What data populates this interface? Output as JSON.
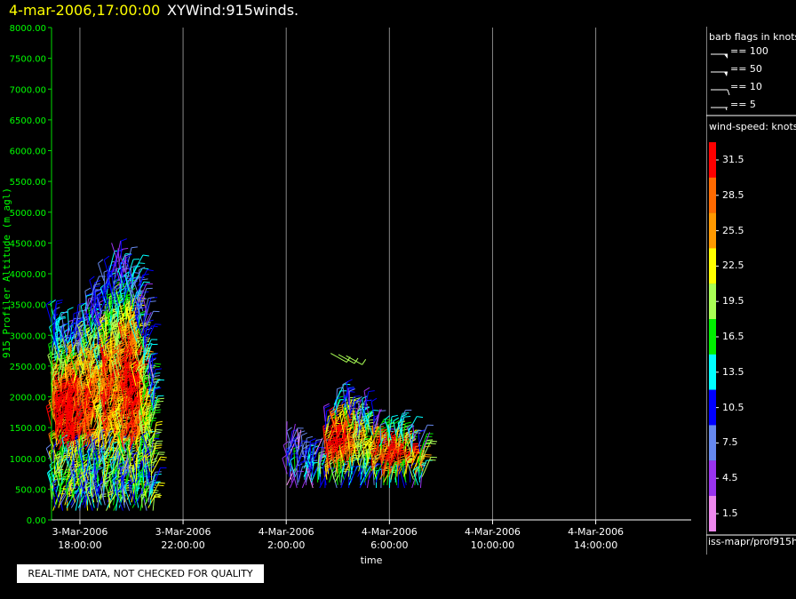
{
  "title": {
    "date": "4-mar-2006,17:00:00",
    "main": "XYWind:915winds."
  },
  "qc_notice": "REAL-TIME DATA, NOT CHECKED FOR QUALITY",
  "source_label": "iss-mapr/prof915h",
  "legend": {
    "barb_title": "barb flags in knots",
    "barbs": [
      {
        "label": "== 100",
        "type": "pennant"
      },
      {
        "label": "== 50",
        "type": "pennant-small"
      },
      {
        "label": "== 10",
        "type": "full"
      },
      {
        "label": "== 5",
        "type": "half"
      }
    ],
    "speed_title": "wind-speed: knots",
    "speed_bins": [
      {
        "label": "31.5",
        "color": "#ff0000"
      },
      {
        "label": "28.5",
        "color": "#ff6a00"
      },
      {
        "label": "25.5",
        "color": "#ff9900"
      },
      {
        "label": "22.5",
        "color": "#ffff00"
      },
      {
        "label": "19.5",
        "color": "#aaff55"
      },
      {
        "label": "16.5",
        "color": "#00ee00"
      },
      {
        "label": "13.5",
        "color": "#00ffff"
      },
      {
        "label": "10.5",
        "color": "#0000ff"
      },
      {
        "label": "7.5",
        "color": "#6688ee"
      },
      {
        "label": "4.5",
        "color": "#9933ee"
      },
      {
        "label": "1.5",
        "color": "#ee88ee"
      }
    ]
  },
  "chart_data": {
    "type": "scatter",
    "subtype": "wind-barbs",
    "xlabel": "time",
    "ylabel": "915 Profiler Altitude (m agl)",
    "x_ticks": [
      {
        "line1": "3-Mar-2006",
        "line2": "18:00:00",
        "hour": 0
      },
      {
        "line1": "3-Mar-2006",
        "line2": "22:00:00",
        "hour": 4
      },
      {
        "line1": "4-Mar-2006",
        "line2": "2:00:00",
        "hour": 8
      },
      {
        "line1": "4-Mar-2006",
        "line2": "6:00:00",
        "hour": 12
      },
      {
        "line1": "4-Mar-2006",
        "line2": "10:00:00",
        "hour": 16
      },
      {
        "line1": "4-Mar-2006",
        "line2": "14:00:00",
        "hour": 20
      }
    ],
    "x_reference": "3-Mar-2006 18:00:00",
    "x_range_hours": [
      -1.1,
      23.7
    ],
    "ylim": [
      0,
      8000
    ],
    "y_ticks": [
      "0.00",
      "500.00",
      "1000.00",
      "1500.00",
      "2000.00",
      "2500.00",
      "3000.00",
      "3500.00",
      "4000.00",
      "4500.00",
      "5000.00",
      "5500.00",
      "6000.00",
      "6500.00",
      "7000.00",
      "7500.00",
      "8000.00"
    ],
    "grid": "vertical",
    "series": [
      {
        "profiles": [
          {
            "hour": -1.0,
            "top": 3300,
            "mid_speed": 24
          },
          {
            "hour": -0.75,
            "top": 3000,
            "mid_speed": 30
          },
          {
            "hour": -0.5,
            "top": 3100,
            "mid_speed": 31
          },
          {
            "hour": -0.25,
            "top": 3200,
            "mid_speed": 29
          },
          {
            "hour": 0.0,
            "top": 3000,
            "mid_speed": 27
          },
          {
            "hour": 0.25,
            "top": 3500,
            "mid_speed": 25
          },
          {
            "hour": 0.5,
            "top": 3700,
            "mid_speed": 22
          },
          {
            "hour": 0.75,
            "top": 3400,
            "mid_speed": 20
          },
          {
            "hour": 1.0,
            "top": 3900,
            "mid_speed": 26
          },
          {
            "hour": 1.25,
            "top": 4100,
            "mid_speed": 23
          },
          {
            "hour": 1.5,
            "top": 4300,
            "mid_speed": 21
          },
          {
            "hour": 1.75,
            "top": 4100,
            "mid_speed": 28
          },
          {
            "hour": 2.0,
            "top": 4000,
            "mid_speed": 30
          },
          {
            "hour": 2.25,
            "top": 3800,
            "mid_speed": 24
          },
          {
            "hour": 2.5,
            "top": 3400,
            "mid_speed": 18
          },
          {
            "hour": 2.75,
            "top": 2400,
            "mid_speed": 17
          },
          {
            "hour": 8.1,
            "top": 1300,
            "mid_speed": 8
          },
          {
            "hour": 8.4,
            "top": 1200,
            "mid_speed": 9
          },
          {
            "hour": 8.7,
            "top": 1100,
            "mid_speed": 10
          },
          {
            "hour": 9.0,
            "top": 1100,
            "mid_speed": 11
          },
          {
            "hour": 9.3,
            "top": 1000,
            "mid_speed": 13
          },
          {
            "hour": 9.6,
            "top": 1600,
            "mid_speed": 28
          },
          {
            "hour": 9.9,
            "top": 1900,
            "mid_speed": 30
          },
          {
            "hour": 10.2,
            "top": 2000,
            "mid_speed": 26
          },
          {
            "hour": 10.5,
            "top": 1900,
            "mid_speed": 22
          },
          {
            "hour": 10.8,
            "top": 1700,
            "mid_speed": 18
          },
          {
            "hour": 11.1,
            "top": 1800,
            "mid_speed": 20
          },
          {
            "hour": 11.4,
            "top": 1600,
            "mid_speed": 24
          },
          {
            "hour": 11.7,
            "top": 1300,
            "mid_speed": 27
          },
          {
            "hour": 12.0,
            "top": 1400,
            "mid_speed": 29
          },
          {
            "hour": 12.3,
            "top": 1500,
            "mid_speed": 27
          },
          {
            "hour": 12.6,
            "top": 1400,
            "mid_speed": 25
          },
          {
            "hour": 12.9,
            "top": 1300,
            "mid_speed": 22
          },
          {
            "hour": 13.2,
            "top": 1200,
            "mid_speed": 20
          }
        ]
      }
    ]
  }
}
